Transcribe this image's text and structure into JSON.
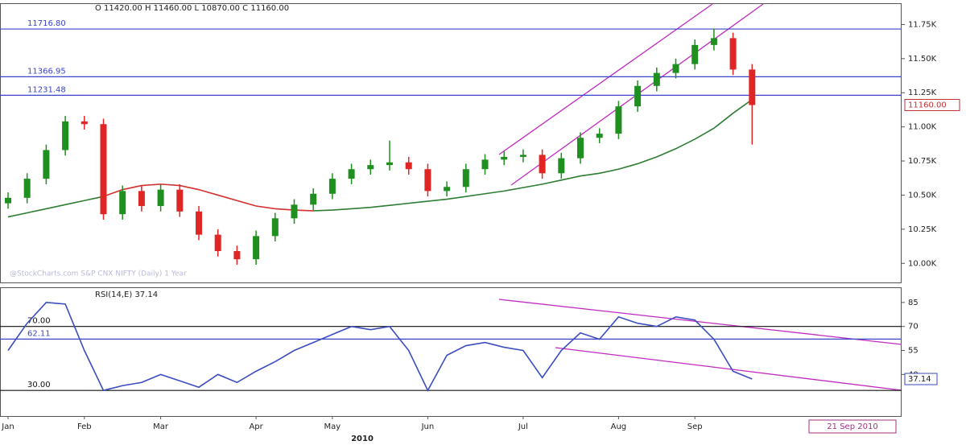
{
  "chart_data": [
    {
      "type": "candlestick",
      "title": "O 11420.00 H 11460.00 L 10870.00 C 11160.00",
      "watermark": "@StockCharts.com S&P CNX NIFTY (Daily) 1 Year",
      "open": [
        10440,
        10480,
        10620,
        10830,
        11040,
        11020,
        10360,
        10530,
        10420,
        10540,
        10380,
        10210,
        10090,
        10030,
        10200,
        10330,
        10430,
        10510,
        10620,
        10690,
        10720,
        10740,
        10690,
        10530,
        10560,
        10690,
        10760,
        10780,
        10795,
        10660,
        10770,
        10920,
        10950,
        11150,
        11300,
        11395,
        11460,
        11600,
        11650,
        11420
      ],
      "high": [
        10520,
        10660,
        10870,
        11080,
        11080,
        11060,
        10570,
        10570,
        10580,
        10580,
        10420,
        10250,
        10130,
        10240,
        10370,
        10470,
        10550,
        10660,
        10730,
        10760,
        10900,
        10780,
        10730,
        10600,
        10730,
        10800,
        10820,
        10835,
        10835,
        10810,
        10960,
        10990,
        11190,
        11340,
        11435,
        11500,
        11640,
        11720,
        11690,
        11460
      ],
      "low": [
        10400,
        10440,
        10580,
        10790,
        10980,
        10320,
        10320,
        10380,
        10380,
        10340,
        10170,
        10050,
        9990,
        9990,
        10160,
        10290,
        10390,
        10470,
        10580,
        10650,
        10680,
        10650,
        10490,
        10490,
        10520,
        10650,
        10720,
        10740,
        10620,
        10620,
        10730,
        10880,
        10910,
        11110,
        11260,
        11355,
        11420,
        11560,
        11380,
        10870
      ],
      "close": [
        10480,
        10620,
        10830,
        11040,
        11020,
        10360,
        10530,
        10420,
        10540,
        10380,
        10210,
        10090,
        10030,
        10200,
        10330,
        10430,
        10510,
        10620,
        10690,
        10720,
        10740,
        10690,
        10530,
        10560,
        10690,
        10760,
        10780,
        10795,
        10660,
        10770,
        10920,
        10950,
        11150,
        11300,
        11395,
        11460,
        11600,
        11650,
        11420,
        11160
      ],
      "up_color": "#1f8f1f",
      "down_color": "#e02525",
      "lines": [
        {
          "color": "#2e7d32",
          "values": [
            10340,
            10370,
            10400,
            10430,
            10460,
            10490,
            null,
            null,
            null,
            null,
            null,
            null,
            null,
            null,
            null,
            null,
            10385,
            10390,
            10400,
            10410,
            10425,
            10440,
            10455,
            10470,
            10490,
            10510,
            10530,
            10555,
            10580,
            10610,
            10640,
            10660,
            10690,
            10730,
            10780,
            10840,
            10910,
            10990,
            11100,
            11200
          ]
        },
        {
          "color": "#d32f2f",
          "values": [
            null,
            null,
            null,
            null,
            null,
            10490,
            10540,
            10570,
            10580,
            10570,
            10540,
            10500,
            10460,
            10420,
            10400,
            10390,
            10385,
            null,
            null,
            null,
            null,
            null,
            null,
            null,
            null,
            null,
            null,
            null,
            null,
            null,
            null,
            null,
            null,
            null,
            null,
            null,
            null,
            null,
            null,
            null
          ]
        }
      ],
      "hlines": [
        {
          "value": 11716.8,
          "label": "11716.80",
          "color": "#3a44c8"
        },
        {
          "value": 11366.95,
          "label": "11366.95",
          "color": "#3a44c8"
        },
        {
          "value": 11231.48,
          "label": "11231.48",
          "color": "#3a44c8"
        }
      ],
      "last_label": "11160.00",
      "ylim": [
        9860,
        11900
      ],
      "yticks": [
        {
          "value": 10000,
          "label": "10.00K"
        },
        {
          "value": 10250,
          "label": "10.25K"
        },
        {
          "value": 10500,
          "label": "10.50K"
        },
        {
          "value": 10750,
          "label": "10.75K"
        },
        {
          "value": 11000,
          "label": "11.00K"
        },
        {
          "value": 11250,
          "label": "11.25K"
        },
        {
          "value": 11500,
          "label": "11.50K"
        },
        {
          "value": 11750,
          "label": "11.75K"
        }
      ]
    },
    {
      "type": "line",
      "title": "RSI(14,E) 37.14",
      "categories": [
        "Jan",
        null,
        null,
        null,
        "Feb",
        null,
        null,
        null,
        "Mar",
        null,
        null,
        null,
        null,
        "Apr",
        null,
        null,
        null,
        "May",
        null,
        null,
        null,
        null,
        "Jun",
        null,
        null,
        null,
        null,
        "Jul",
        null,
        null,
        null,
        null,
        "Aug",
        null,
        null,
        null,
        "Sep",
        null,
        null,
        null
      ],
      "values": [
        55,
        72,
        85,
        84,
        55,
        30,
        33,
        35,
        40,
        36,
        32,
        40,
        35,
        42,
        48,
        55,
        60,
        65,
        70,
        68,
        70,
        55,
        30,
        52,
        58,
        60,
        57,
        55,
        38,
        55,
        66,
        62,
        76,
        72,
        70,
        76,
        74,
        62,
        42,
        37.14
      ],
      "color": "#3b4cc0",
      "last_label": "37.14",
      "hlines": [
        {
          "value": 70,
          "label": "70.00",
          "color": "#111111"
        },
        {
          "value": 62.11,
          "label": "62.11",
          "color": "#3a44c8"
        },
        {
          "value": 30,
          "label": "30.00",
          "color": "#111111"
        }
      ],
      "ylim": [
        14,
        94
      ],
      "yticks": [
        40,
        55,
        70,
        85
      ],
      "x_label": "2010",
      "date_label": "21 Sep 2010"
    }
  ]
}
